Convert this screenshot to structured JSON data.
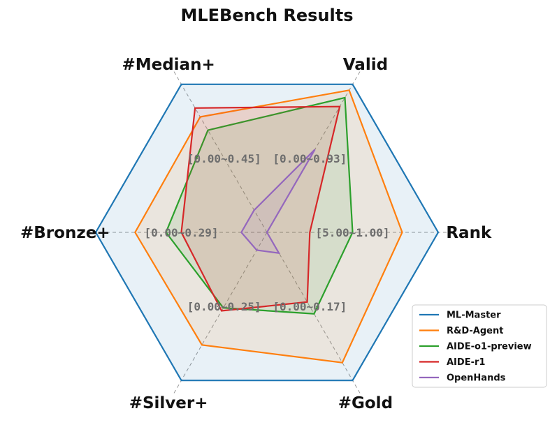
{
  "chart_data": {
    "type": "radar",
    "title": "MLEBench Results",
    "axes": [
      {
        "label": "Valid",
        "range_label": "[0.00~0.93]"
      },
      {
        "label": "#Median+",
        "range_label": "[0.00~0.45]"
      },
      {
        "label": "#Bronze+",
        "range_label": "[0.00~0.29]"
      },
      {
        "label": "#Silver+",
        "range_label": "[0.00~0.25]"
      },
      {
        "label": "#Gold",
        "range_label": "[0.00~0.17]"
      },
      {
        "label": "Rank",
        "range_label": "[5.00~1.00]"
      }
    ],
    "series": [
      {
        "name": "ML-Master",
        "color": "#1f77b4",
        "values": [
          1.0,
          1.0,
          1.0,
          1.0,
          1.0,
          1.0
        ]
      },
      {
        "name": "R&D-Agent",
        "color": "#ff7f0e",
        "values": [
          0.96,
          0.78,
          0.77,
          0.76,
          0.88,
          0.79
        ]
      },
      {
        "name": "AIDE-o1-preview",
        "color": "#2ca02c",
        "values": [
          0.91,
          0.69,
          0.59,
          0.51,
          0.55,
          0.5
        ]
      },
      {
        "name": "AIDE-r1",
        "color": "#d62728",
        "values": [
          0.85,
          0.84,
          0.5,
          0.53,
          0.47,
          0.25
        ]
      },
      {
        "name": "OpenHands",
        "color": "#9467bd",
        "values": [
          0.56,
          0.15,
          0.15,
          0.12,
          0.14,
          0.0
        ]
      }
    ],
    "grid": true,
    "legend_position": "bottom-right"
  }
}
